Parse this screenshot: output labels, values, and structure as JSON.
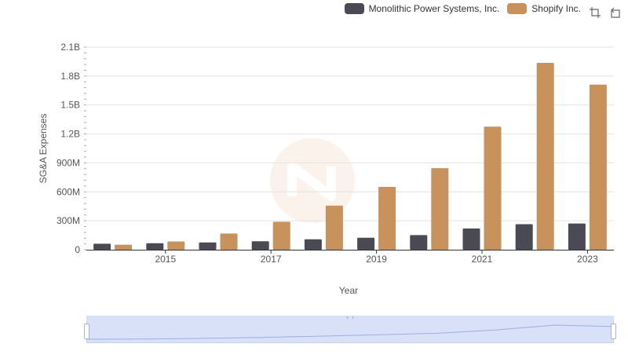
{
  "legend": {
    "items": [
      {
        "label": "Monolithic Power Systems, Inc.",
        "color": "#4a4a55"
      },
      {
        "label": "Shopify Inc.",
        "color": "#c8925c"
      }
    ]
  },
  "toolbox": {
    "icons": [
      "zoom-icon",
      "zoom-reset-icon"
    ]
  },
  "chart_data": {
    "type": "bar",
    "title": "",
    "xlabel": "Year",
    "ylabel": "SG&A Expenses",
    "categories": [
      "2014",
      "2015",
      "2016",
      "2017",
      "2018",
      "2019",
      "2020",
      "2021",
      "2022",
      "2023"
    ],
    "x_tick_labels": [
      "2015",
      "2017",
      "2019",
      "2021",
      "2023"
    ],
    "y_tick_labels": [
      "0",
      "300M",
      "600M",
      "900M",
      "1.2B",
      "1.5B",
      "1.8B",
      "2.1B"
    ],
    "ylim": [
      0,
      2100000000
    ],
    "y_ticks": [
      0,
      300000000,
      600000000,
      900000000,
      1200000000,
      1500000000,
      1800000000,
      2100000000
    ],
    "grid": true,
    "legend_position": "top-right",
    "series": [
      {
        "name": "Monolithic Power Systems, Inc.",
        "color": "#4a4a55",
        "values": [
          62000000,
          67000000,
          75000000,
          88000000,
          108000000,
          124000000,
          152000000,
          220000000,
          265000000,
          272000000
        ]
      },
      {
        "name": "Shopify Inc.",
        "color": "#c8925c",
        "values": [
          52000000,
          85000000,
          168000000,
          290000000,
          457000000,
          651000000,
          845000000,
          1276000000,
          1937000000,
          1711000000
        ]
      }
    ]
  }
}
